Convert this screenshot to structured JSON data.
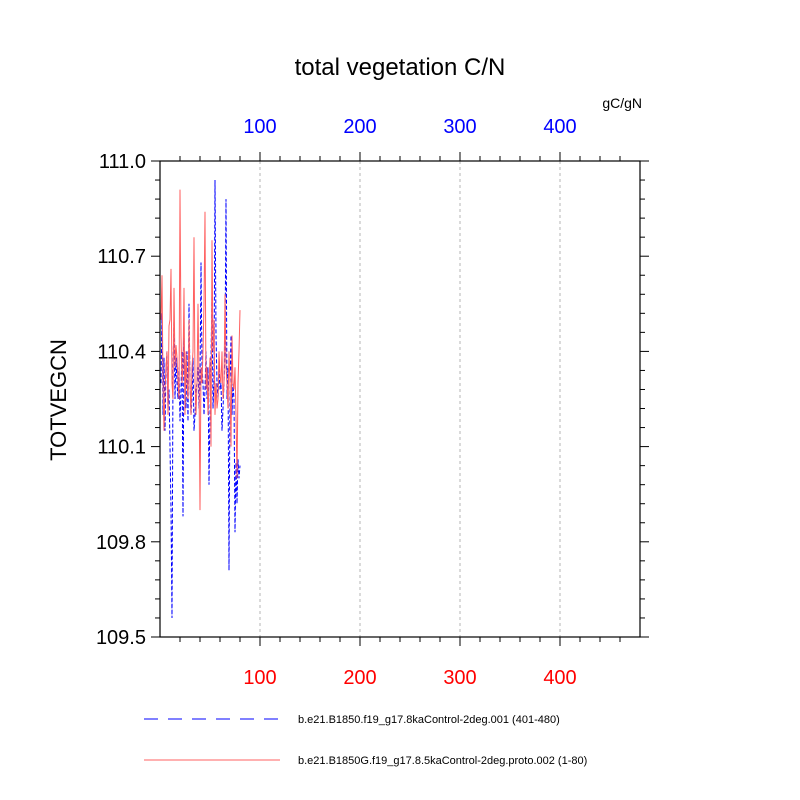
{
  "chart_data": {
    "type": "line",
    "title": "total vegetation C/N",
    "ylabel": "TOTVEGCN",
    "units": "gC/gN",
    "xlim": [
      0,
      480
    ],
    "ylim": [
      109.5,
      111.0
    ],
    "yticks": [
      109.5,
      109.8,
      110.1,
      110.4,
      110.7,
      111.0
    ],
    "ytick_labels": [
      "109.5",
      "109.8",
      "110.1",
      "110.4",
      "110.7",
      "111.0"
    ],
    "top_xticks": [
      100,
      200,
      300,
      400
    ],
    "top_xtick_labels": [
      "100",
      "200",
      "300",
      "400"
    ],
    "top_axis_color": "#0000ff",
    "bottom_xticks": [
      100,
      200,
      300,
      400
    ],
    "bottom_xtick_labels": [
      "100",
      "200",
      "300",
      "400"
    ],
    "bottom_axis_color": "#ff0000",
    "grid": "vertical dashed at major ticks",
    "legend_position": "bottom",
    "series": [
      {
        "name": "b.e21.B1850.f19_g17.8kaControl-2deg.001 (401-480)",
        "color": "#0000ff",
        "dash": "dashed",
        "x": [
          1,
          2,
          3,
          4,
          5,
          6,
          7,
          8,
          9,
          10,
          11,
          12,
          13,
          14,
          15,
          16,
          17,
          18,
          19,
          20,
          21,
          22,
          23,
          24,
          25,
          26,
          27,
          28,
          29,
          30,
          31,
          32,
          33,
          34,
          35,
          36,
          37,
          38,
          39,
          40,
          41,
          42,
          43,
          44,
          45,
          46,
          47,
          48,
          49,
          50,
          51,
          52,
          53,
          54,
          55,
          56,
          57,
          58,
          59,
          60,
          61,
          62,
          63,
          64,
          65,
          66,
          67,
          68,
          69,
          70,
          71,
          72,
          73,
          74,
          75,
          76,
          77,
          78,
          79,
          80
        ],
        "y": [
          110.3,
          110.52,
          110.2,
          110.38,
          110.15,
          110.35,
          110.4,
          110.22,
          110.28,
          110.1,
          109.9,
          109.56,
          110.35,
          110.5,
          110.25,
          110.38,
          110.3,
          110.25,
          110.35,
          110.18,
          110.28,
          110.4,
          109.88,
          110.45,
          110.3,
          110.22,
          110.4,
          110.18,
          110.55,
          110.3,
          110.2,
          110.25,
          110.38,
          110.15,
          110.2,
          110.28,
          110.3,
          110.35,
          110.22,
          110.3,
          110.68,
          110.35,
          110.3,
          110.2,
          110.28,
          110.4,
          110.25,
          110.35,
          109.98,
          110.2,
          110.38,
          110.58,
          110.22,
          110.3,
          110.94,
          110.45,
          110.3,
          110.25,
          110.35,
          110.28,
          110.3,
          110.15,
          110.22,
          110.3,
          110.4,
          110.88,
          110.25,
          110.35,
          109.71,
          110.28,
          110.45,
          110.2,
          110.3,
          110.25,
          109.83,
          110.05,
          109.92,
          110.06,
          110.0,
          110.04
        ]
      },
      {
        "name": "b.e21.B1850G.f19_g17.8.5kaControl-2deg.proto.002 (1-80)",
        "color": "#ff6060",
        "dash": "solid",
        "x": [
          1,
          2,
          3,
          4,
          5,
          6,
          7,
          8,
          9,
          10,
          11,
          12,
          13,
          14,
          15,
          16,
          17,
          18,
          19,
          20,
          21,
          22,
          23,
          24,
          25,
          26,
          27,
          28,
          29,
          30,
          31,
          32,
          33,
          34,
          35,
          36,
          37,
          38,
          39,
          40,
          41,
          42,
          43,
          44,
          45,
          46,
          47,
          48,
          49,
          50,
          51,
          52,
          53,
          54,
          55,
          56,
          57,
          58,
          59,
          60,
          61,
          62,
          63,
          64,
          65,
          66,
          67,
          68,
          69,
          70,
          71,
          72,
          73,
          74,
          75,
          76,
          77,
          78,
          79,
          80
        ],
        "y": [
          110.5,
          110.64,
          110.3,
          110.15,
          110.28,
          110.35,
          110.4,
          110.2,
          110.48,
          110.5,
          110.66,
          110.3,
          110.25,
          110.6,
          110.35,
          110.42,
          110.38,
          110.3,
          110.25,
          110.91,
          110.45,
          110.3,
          110.35,
          110.6,
          110.2,
          110.4,
          110.3,
          110.25,
          110.5,
          110.3,
          110.2,
          110.35,
          110.4,
          110.76,
          110.3,
          110.2,
          110.3,
          110.55,
          110.32,
          109.9,
          110.35,
          110.3,
          110.4,
          110.55,
          110.84,
          110.28,
          110.35,
          110.2,
          110.3,
          110.38,
          110.1,
          110.75,
          110.4,
          110.5,
          110.2,
          110.3,
          110.22,
          110.25,
          110.4,
          110.32,
          110.3,
          110.4,
          110.25,
          110.3,
          110.58,
          110.35,
          110.3,
          110.22,
          110.4,
          110.3,
          110.1,
          110.45,
          110.3,
          110.28,
          110.35,
          110.2,
          110.0,
          110.3,
          110.4,
          110.53
        ]
      }
    ]
  }
}
